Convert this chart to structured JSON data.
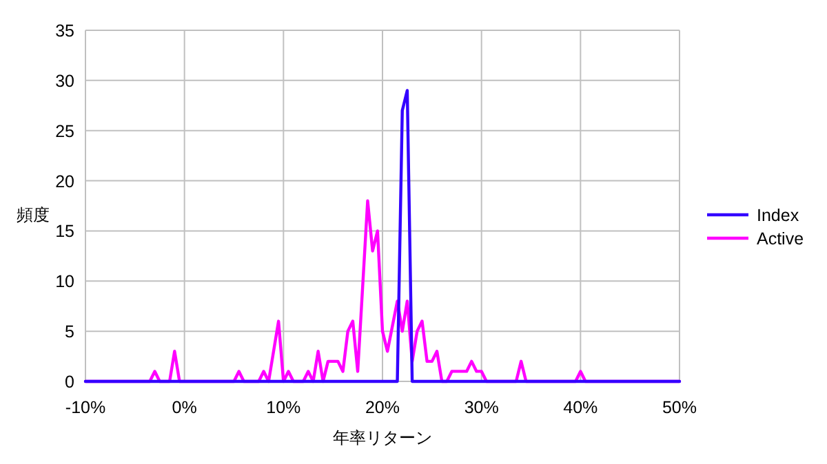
{
  "chart_data": {
    "type": "line",
    "xlabel": "年率リターン",
    "ylabel": "頻度",
    "xlim": [
      -10,
      50
    ],
    "ylim": [
      0,
      35
    ],
    "xticks": [
      {
        "value": -10,
        "label": "-10%"
      },
      {
        "value": 0,
        "label": "0%"
      },
      {
        "value": 10,
        "label": "10%"
      },
      {
        "value": 20,
        "label": "20%"
      },
      {
        "value": 30,
        "label": "30%"
      },
      {
        "value": 40,
        "label": "40%"
      },
      {
        "value": 50,
        "label": "50%"
      }
    ],
    "yticks": [
      0,
      5,
      10,
      15,
      20,
      25,
      30,
      35
    ],
    "grid": true,
    "legend": "right",
    "series": [
      {
        "name": "Index",
        "color": "#3300ff",
        "x": [
          -10,
          21.5,
          22,
          22.5,
          23,
          50
        ],
        "values": [
          0,
          0,
          27,
          29,
          0,
          0
        ]
      },
      {
        "name": "Active",
        "color": "#ff00ff",
        "x": [
          -10,
          -3.5,
          -3,
          -2.5,
          -1.5,
          -1,
          -0.5,
          5,
          5.5,
          6,
          7.5,
          8,
          8.5,
          9.5,
          10,
          10.5,
          11,
          12,
          12.5,
          13,
          13.5,
          14,
          14.5,
          15.5,
          16,
          16.5,
          17,
          17.5,
          18.5,
          19,
          19.5,
          20,
          20.5,
          21.5,
          22,
          22.5,
          23,
          23.5,
          24,
          24.5,
          25,
          25.5,
          26,
          26.5,
          27,
          28.5,
          29,
          29.5,
          30,
          30.5,
          33.5,
          34,
          34.5,
          39.5,
          40,
          40.5,
          50
        ],
        "values": [
          0,
          0,
          1,
          0,
          0,
          3,
          0,
          0,
          1,
          0,
          0,
          1,
          0,
          6,
          0,
          1,
          0,
          0,
          1,
          0,
          3,
          0,
          2,
          2,
          1,
          5,
          6,
          1,
          18,
          13,
          15,
          5,
          3,
          8,
          5,
          8,
          2,
          5,
          6,
          2,
          2,
          3,
          0,
          0,
          1,
          1,
          2,
          1,
          1,
          0,
          0,
          2,
          0,
          0,
          1,
          0,
          0
        ]
      }
    ]
  }
}
